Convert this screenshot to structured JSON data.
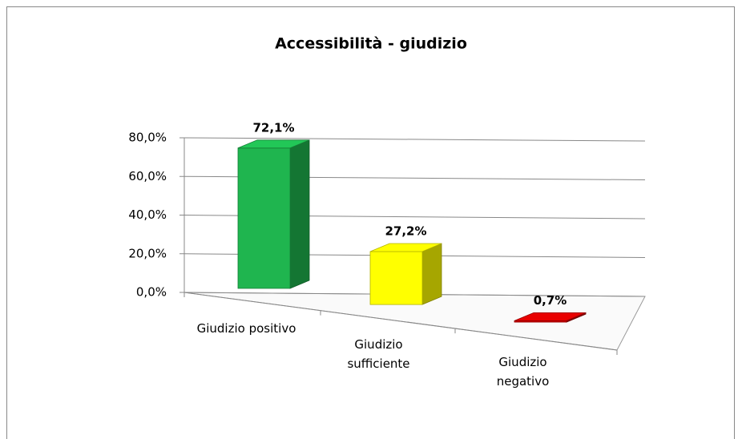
{
  "chart_data": {
    "type": "bar3d",
    "title": "Accessibilità - giudizio",
    "categories": [
      "Giudizio positivo",
      "Giudizio sufficiente",
      "Giudizio negativo"
    ],
    "values": [
      72.1,
      27.2,
      0.7
    ],
    "value_labels": [
      "72,1%",
      "27,2%",
      "0,7%"
    ],
    "colors": [
      "#1fb54f",
      "#ffff00",
      "#d40000"
    ],
    "ylim": [
      0,
      80
    ],
    "yticks": [
      {
        "value": 0,
        "label": "0,0%"
      },
      {
        "value": 20,
        "label": "20,0%"
      },
      {
        "value": 40,
        "label": "40,0%"
      },
      {
        "value": 60,
        "label": "60,0%"
      },
      {
        "value": 80,
        "label": "80,0%"
      }
    ],
    "grid": true
  }
}
